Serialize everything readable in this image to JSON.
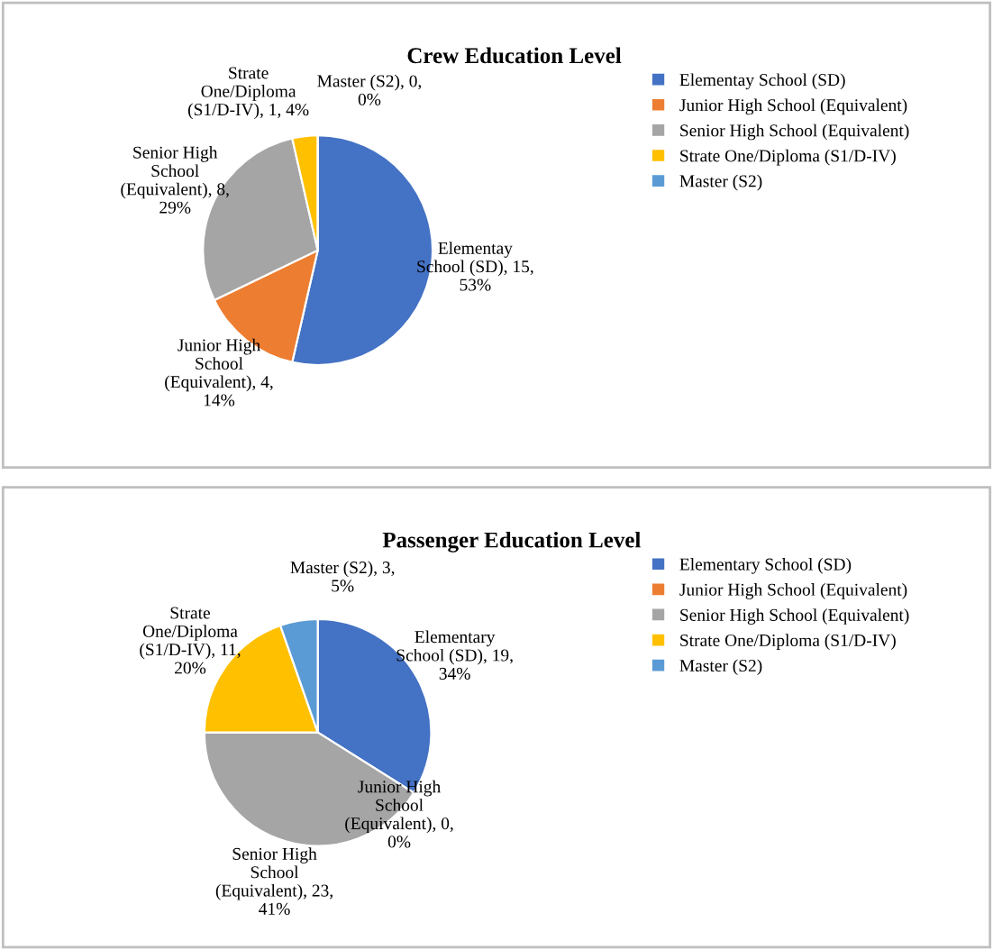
{
  "chart_data": [
    {
      "type": "pie",
      "title": "Crew Education Level",
      "categories": [
        "Elementay School (SD)",
        "Junior High School (Equivalent)",
        "Senior High School (Equivalent)",
        "Strate One/Diploma (S1/D-IV)",
        "Master (S2)"
      ],
      "values": [
        15,
        4,
        8,
        1,
        0
      ],
      "colors": [
        "#4472c4",
        "#ed7d31",
        "#a5a5a5",
        "#ffc000",
        "#5b9bd5"
      ],
      "value_labels": [
        "Elementay\nSchool (SD), 15,\n53%",
        "Junior High\nSchool\n(Equivalent), 4,\n14%",
        "Senior High\nSchool\n(Equivalent), 8,\n29%",
        "Strate\nOne/Diploma\n(S1/D-IV), 1, 4%",
        "Master (S2), 0,\n0%"
      ],
      "legend": "right"
    },
    {
      "type": "pie",
      "title": "Passenger Education Level",
      "categories": [
        "Elementary School (SD)",
        "Junior High School (Equivalent)",
        "Senior High School (Equivalent)",
        "Strate One/Diploma (S1/D-IV)",
        "Master (S2)"
      ],
      "values": [
        19,
        0,
        23,
        11,
        3
      ],
      "colors": [
        "#4472c4",
        "#ed7d31",
        "#a5a5a5",
        "#ffc000",
        "#5b9bd5"
      ],
      "value_labels": [
        "Elementary\nSchool (SD), 19,\n34%",
        "Junior High\nSchool\n(Equivalent), 0,\n0%",
        "Senior High\nSchool\n(Equivalent), 23,\n41%",
        "Strate\nOne/Diploma\n(S1/D-IV), 11,\n20%",
        "Master (S2), 3,\n5%"
      ],
      "legend": "right"
    }
  ]
}
